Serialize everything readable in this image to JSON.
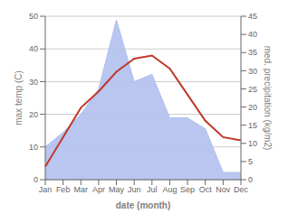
{
  "chart_data": {
    "type": "line",
    "xlabel": "date (month)",
    "ylabel": "max temp (C)",
    "y2label": "med. precipitation (kg/m2)",
    "categories": [
      "Jan",
      "Feb",
      "Mar",
      "Apr",
      "May",
      "Jun",
      "Jul",
      "Aug",
      "Sep",
      "Oct",
      "Nov",
      "Dec"
    ],
    "series": [
      {
        "type": "line",
        "color": "#c0392b",
        "values": [
          4,
          13,
          22,
          27,
          33,
          37,
          38,
          34,
          26,
          18,
          13,
          12
        ]
      },
      {
        "type": "area",
        "axis": "y2",
        "color": "#b0c0ee",
        "values": [
          9,
          13,
          18,
          25,
          44,
          27,
          29,
          17,
          17,
          14,
          2,
          2
        ]
      }
    ],
    "ylim": [
      0,
      50
    ],
    "yticks": [
      0,
      10,
      20,
      30,
      40,
      50
    ],
    "y2lim": [
      0,
      45
    ],
    "y2ticks": [
      0,
      5,
      10,
      15,
      20,
      25,
      30,
      35,
      40,
      45
    ],
    "grid": true
  }
}
